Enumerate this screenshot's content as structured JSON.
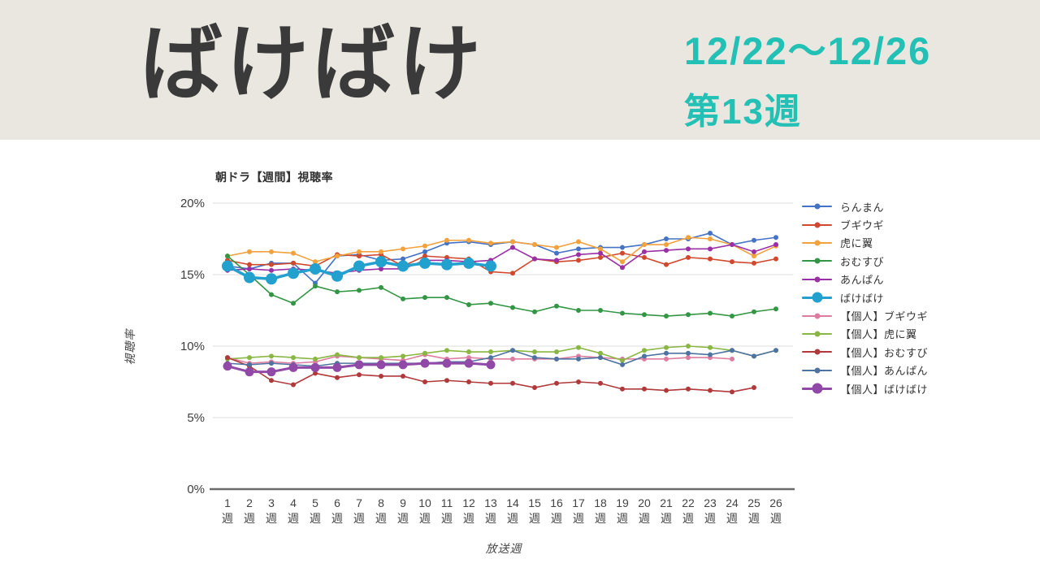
{
  "header": {
    "title": "ばけばけ",
    "date_range": "12/22～12/26",
    "week_label": "第13週",
    "banner_bg_color": "#e9e7e0",
    "accent_color": "#23c0b5",
    "title_color": "#3a3a3a"
  },
  "chart_data": {
    "type": "line",
    "title": "朝ドラ【週間】視聴率",
    "xlabel": "放送週",
    "ylabel": "視聴率",
    "x_unit_suffix": "週",
    "x": [
      1,
      2,
      3,
      4,
      5,
      6,
      7,
      8,
      9,
      10,
      11,
      12,
      13,
      14,
      15,
      16,
      17,
      18,
      19,
      20,
      21,
      22,
      23,
      24,
      25,
      26
    ],
    "ylim": [
      0,
      20
    ],
    "yticks": [
      0,
      5,
      10,
      15,
      20
    ],
    "ytick_labels": [
      "0%",
      "5%",
      "10%",
      "15%",
      "20%"
    ],
    "grid": true,
    "legend_position": "right",
    "series": [
      {
        "name": "らんまん",
        "color": "#4472c4",
        "bold": false,
        "line_width": 1.6,
        "marker_radius": 3,
        "values": [
          15.6,
          15.4,
          15.8,
          15.8,
          14.4,
          16.3,
          16.4,
          16.0,
          16.1,
          16.6,
          17.2,
          17.3,
          17.1,
          17.3,
          17.1,
          16.5,
          16.8,
          16.9,
          16.9,
          17.1,
          17.5,
          17.5,
          17.9,
          17.1,
          17.4,
          17.6
        ]
      },
      {
        "name": "ブギウギ",
        "color": "#d0492f",
        "bold": false,
        "line_width": 1.6,
        "marker_radius": 3,
        "values": [
          16.0,
          15.7,
          15.7,
          15.8,
          15.6,
          16.4,
          16.3,
          16.4,
          15.6,
          16.3,
          16.2,
          16.1,
          15.2,
          15.1,
          16.1,
          15.9,
          16.0,
          16.2,
          16.5,
          16.2,
          15.7,
          16.2,
          16.1,
          15.9,
          15.8,
          16.1
        ]
      },
      {
        "name": "虎に翼",
        "color": "#f2a13c",
        "bold": false,
        "line_width": 1.6,
        "marker_radius": 3,
        "values": [
          16.3,
          16.6,
          16.6,
          16.5,
          15.9,
          16.3,
          16.6,
          16.6,
          16.8,
          17.0,
          17.4,
          17.4,
          17.2,
          17.3,
          17.1,
          16.9,
          17.3,
          16.8,
          15.9,
          17.1,
          17.1,
          17.6,
          17.5,
          17.1,
          16.3,
          17.0
        ]
      },
      {
        "name": "おむすび",
        "color": "#339644",
        "bold": false,
        "line_width": 1.6,
        "marker_radius": 3,
        "values": [
          16.3,
          15.0,
          13.6,
          13.0,
          14.2,
          13.8,
          13.9,
          14.1,
          13.3,
          13.4,
          13.4,
          12.9,
          13.0,
          12.7,
          12.4,
          12.8,
          12.5,
          12.5,
          12.3,
          12.2,
          12.1,
          12.2,
          12.3,
          12.1,
          12.4,
          12.6
        ]
      },
      {
        "name": "あんぱん",
        "color": "#9b2fa5",
        "bold": false,
        "line_width": 1.6,
        "marker_radius": 3,
        "values": [
          15.3,
          15.4,
          15.3,
          15.4,
          15.3,
          15.1,
          15.3,
          15.4,
          15.4,
          16.0,
          16.0,
          15.9,
          16.0,
          16.9,
          16.1,
          16.0,
          16.4,
          16.5,
          15.5,
          16.6,
          16.7,
          16.8,
          16.8,
          17.1,
          16.6,
          17.1
        ]
      },
      {
        "name": "ばけばけ",
        "color": "#22a0ce",
        "bold": true,
        "line_width": 3.5,
        "marker_radius": 7,
        "values": [
          15.6,
          14.8,
          14.7,
          15.1,
          15.4,
          14.9,
          15.6,
          15.9,
          15.6,
          15.8,
          15.7,
          15.8,
          15.6
        ]
      },
      {
        "name": "【個人】ブギウギ",
        "color": "#dd7c9f",
        "bold": false,
        "line_width": 1.6,
        "marker_radius": 3,
        "values": [
          9.2,
          8.8,
          8.9,
          8.8,
          8.9,
          9.3,
          9.2,
          9.1,
          9.0,
          9.4,
          9.1,
          9.2,
          9.1,
          9.1,
          9.1,
          9.1,
          9.3,
          9.2,
          9.1,
          9.1,
          9.1,
          9.2,
          9.2,
          9.1
        ]
      },
      {
        "name": "【個人】虎に翼",
        "color": "#8ab743",
        "bold": false,
        "line_width": 1.6,
        "marker_radius": 3,
        "values": [
          9.1,
          9.2,
          9.3,
          9.2,
          9.1,
          9.4,
          9.2,
          9.2,
          9.3,
          9.5,
          9.7,
          9.6,
          9.6,
          9.7,
          9.6,
          9.6,
          9.9,
          9.5,
          9.0,
          9.7,
          9.9,
          10.0,
          9.9,
          9.7,
          9.3,
          9.7
        ]
      },
      {
        "name": "【個人】おむすび",
        "color": "#b03a3b",
        "bold": false,
        "line_width": 1.6,
        "marker_radius": 3,
        "values": [
          9.2,
          8.6,
          7.6,
          7.3,
          8.1,
          7.8,
          8.0,
          7.9,
          7.9,
          7.5,
          7.6,
          7.5,
          7.4,
          7.4,
          7.1,
          7.4,
          7.5,
          7.4,
          7.0,
          7.0,
          6.9,
          7.0,
          6.9,
          6.8,
          7.1
        ]
      },
      {
        "name": "【個人】あんぱん",
        "color": "#4e73a0",
        "bold": false,
        "line_width": 1.6,
        "marker_radius": 3,
        "values": [
          8.8,
          8.7,
          8.8,
          8.7,
          8.6,
          8.8,
          8.8,
          8.8,
          8.8,
          8.8,
          8.9,
          8.9,
          9.2,
          9.7,
          9.2,
          9.1,
          9.1,
          9.2,
          8.7,
          9.3,
          9.5,
          9.5,
          9.4,
          9.7,
          9.3,
          9.7
        ]
      },
      {
        "name": "【個人】ばけばけ",
        "color": "#9149a8",
        "bold": true,
        "line_width": 3,
        "marker_radius": 5.5,
        "values": [
          8.6,
          8.2,
          8.2,
          8.5,
          8.5,
          8.5,
          8.7,
          8.7,
          8.7,
          8.8,
          8.8,
          8.8,
          8.7
        ]
      }
    ]
  }
}
